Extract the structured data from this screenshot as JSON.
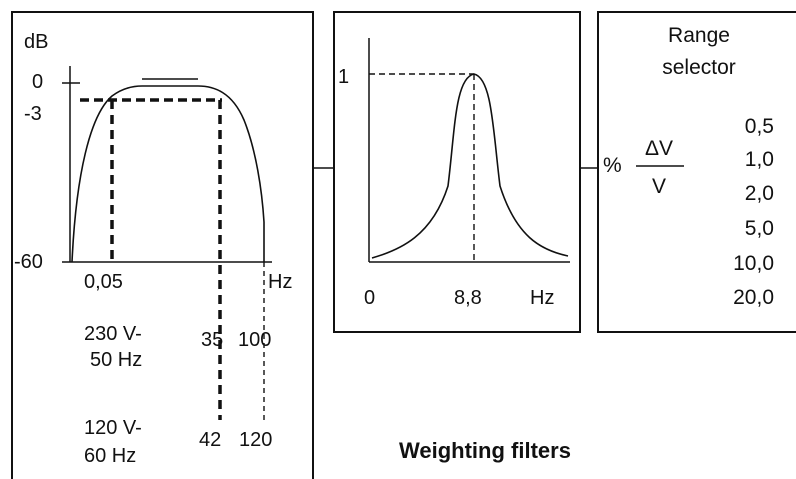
{
  "colors": {
    "ink": "#111111",
    "background": "#ffffff"
  },
  "bandpass": {
    "y_unit": "dB",
    "y_ticks": [
      "0",
      "-3",
      "-60"
    ],
    "x_ticks": [
      "0,05",
      "Hz"
    ],
    "mains_230": [
      "230 V-",
      "50 Hz"
    ],
    "mains_120": [
      "120 V-",
      "60 Hz"
    ],
    "cutoff_230": [
      "35",
      "100"
    ],
    "cutoff_120": [
      "42",
      "120"
    ]
  },
  "weighting": {
    "y_tick": "1",
    "x_ticks": [
      "0",
      "8,8",
      "Hz"
    ]
  },
  "range_selector": {
    "title": [
      "Range",
      "selector"
    ],
    "percent": "%",
    "numerator": "ΔV",
    "denominator": "V",
    "ranges": [
      "0,5",
      "1,0",
      "2,0",
      "5,0",
      "10,0",
      "20,0"
    ]
  },
  "caption": "Weighting filters"
}
